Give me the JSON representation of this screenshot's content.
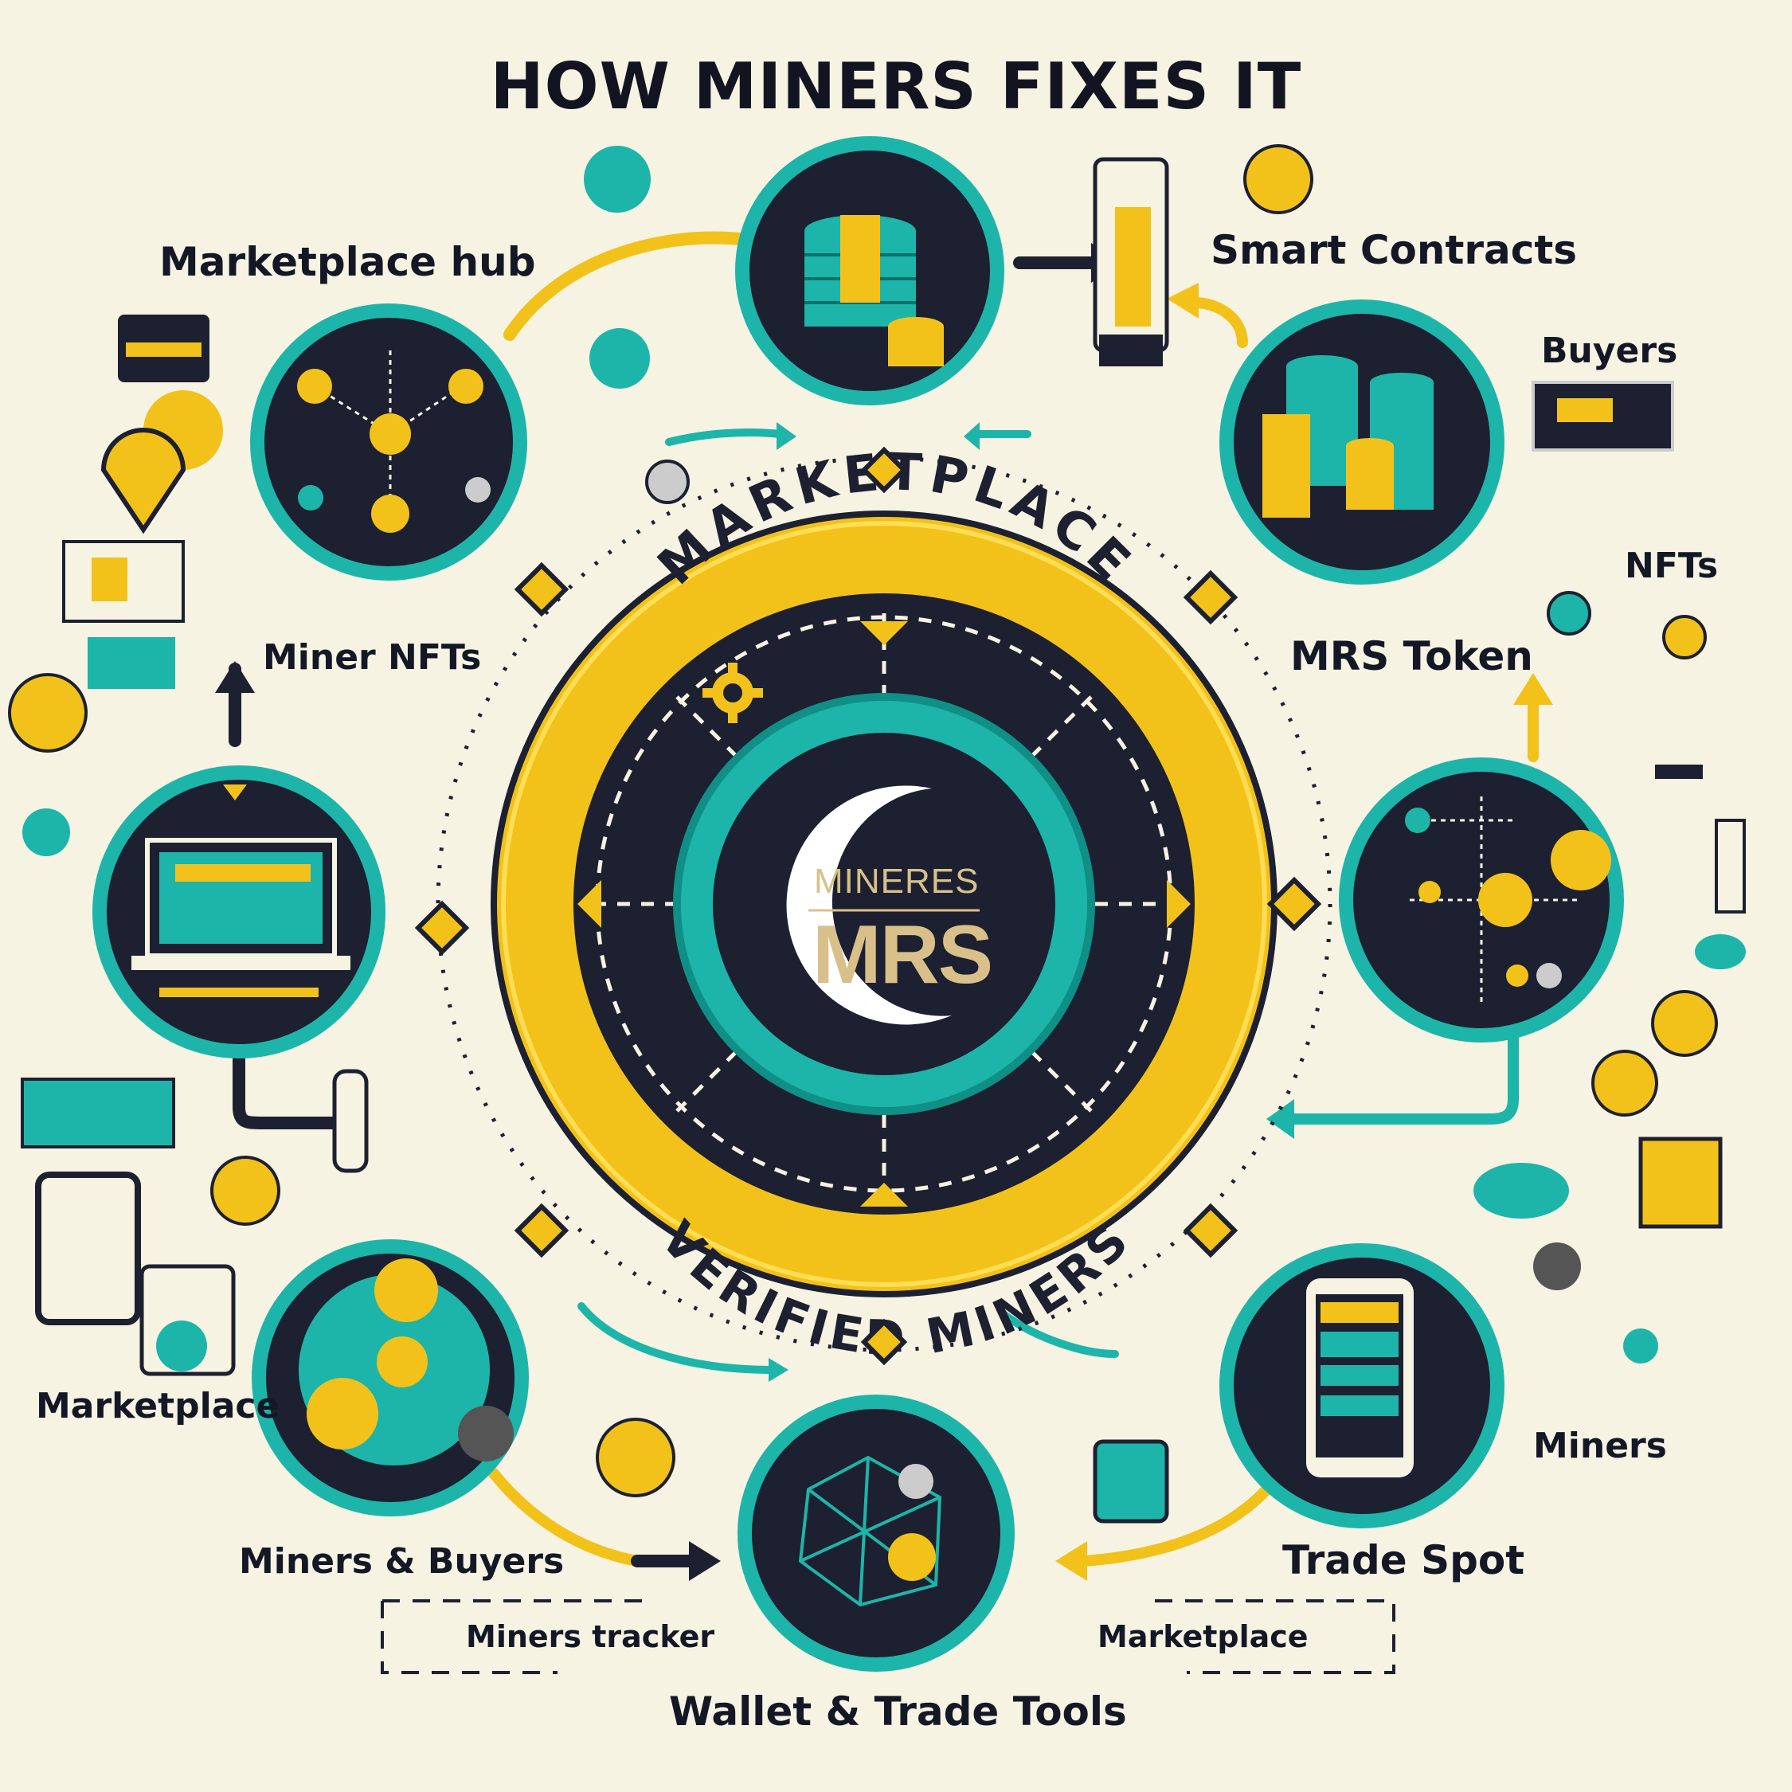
{
  "title": "HOW MINERS FIXES IT",
  "ring_top_text": "MARKETPLACE",
  "ring_bottom_text": "VERIFIED MINERS",
  "logo": {
    "name": "MINERES",
    "ticker": "MRS"
  },
  "labels": {
    "marketplace_hub": "Marketplace hub",
    "smart_contracts": "Smart Contracts",
    "buyers": "Buyers",
    "nfts": "NFTs",
    "miner_nfts": "Miner NFTs",
    "mrs_token": "MRS Token",
    "marketplace_left": "Marketplace",
    "miners_right": "Miners",
    "miners_buyers": "Miners & Buyers",
    "trade_spot": "Trade Spot",
    "miners_tracker": "Miners tracker",
    "marketplace_bottom": "Marketplace",
    "wallet_trade_tools": "Wallet & Trade Tools"
  },
  "colors": {
    "teal": "#1db5a9",
    "gold": "#f2c21a",
    "navy": "#1d2030",
    "cream": "#f6f3e3"
  }
}
